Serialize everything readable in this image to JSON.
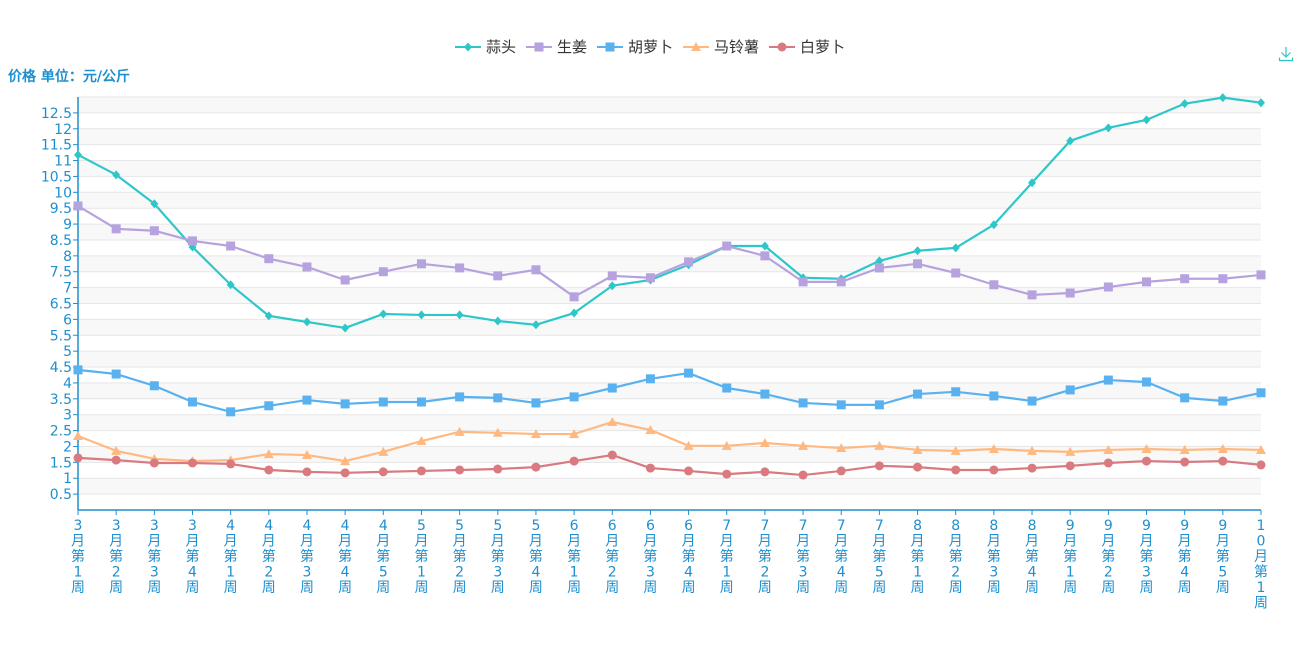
{
  "chart_data": {
    "type": "line",
    "ylabel": "价格 单位：元/公斤",
    "ylim": [
      0,
      13
    ],
    "ytick_step": 0.5,
    "yticks": [
      "0.5",
      "1",
      "1.5",
      "2",
      "2.5",
      "3",
      "3.5",
      "4",
      "4.5",
      "5",
      "5.5",
      "6",
      "6.5",
      "7",
      "7.5",
      "8",
      "8.5",
      "9",
      "9.5",
      "10",
      "10.5",
      "11",
      "11.5",
      "12",
      "12.5"
    ],
    "grid": true,
    "legend_position": "top-center",
    "categories": [
      "3月第1周",
      "3月第2周",
      "3月第3周",
      "3月第4周",
      "4月第1周",
      "4月第2周",
      "4月第3周",
      "4月第4周",
      "4月第5周",
      "5月第1周",
      "5月第2周",
      "5月第3周",
      "5月第4周",
      "6月第1周",
      "6月第2周",
      "6月第3周",
      "6月第4周",
      "7月第1周",
      "7月第2周",
      "7月第3周",
      "7月第4周",
      "7月第5周",
      "8月第1周",
      "8月第2周",
      "8月第3周",
      "8月第4周",
      "9月第1周",
      "9月第2周",
      "9月第3周",
      "9月第4周",
      "9月第5周",
      "10月第1周"
    ],
    "series": [
      {
        "name": "蒜头",
        "color": "#2ec7c9",
        "marker": "diamond",
        "values": [
          11.18,
          10.55,
          9.64,
          8.28,
          7.09,
          6.11,
          5.92,
          5.73,
          6.17,
          6.14,
          6.14,
          5.95,
          5.83,
          6.2,
          7.06,
          7.24,
          7.72,
          8.31,
          8.31,
          7.31,
          7.28,
          7.84,
          8.16,
          8.25,
          8.98,
          10.3,
          11.62,
          12.03,
          12.28,
          12.79,
          12.98,
          12.82
        ]
      },
      {
        "name": "生姜",
        "color": "#b6a2de",
        "marker": "square",
        "values": [
          9.57,
          8.85,
          8.79,
          8.47,
          8.31,
          7.91,
          7.65,
          7.24,
          7.5,
          7.75,
          7.62,
          7.37,
          7.56,
          6.71,
          7.37,
          7.31,
          7.81,
          8.31,
          8.0,
          7.18,
          7.18,
          7.62,
          7.75,
          7.46,
          7.09,
          6.77,
          6.83,
          7.02,
          7.18,
          7.28,
          7.28,
          7.4
        ]
      },
      {
        "name": "胡萝卜",
        "color": "#5ab1ef",
        "marker": "square",
        "values": [
          4.41,
          4.28,
          3.91,
          3.4,
          3.09,
          3.28,
          3.46,
          3.34,
          3.4,
          3.4,
          3.56,
          3.53,
          3.37,
          3.56,
          3.84,
          4.13,
          4.31,
          3.84,
          3.65,
          3.37,
          3.31,
          3.31,
          3.65,
          3.72,
          3.59,
          3.43,
          3.78,
          4.09,
          4.03,
          3.53,
          3.43,
          3.69
        ]
      },
      {
        "name": "马铃薯",
        "color": "#ffb980",
        "marker": "triangle",
        "values": [
          2.33,
          1.86,
          1.61,
          1.54,
          1.57,
          1.76,
          1.73,
          1.54,
          1.83,
          2.17,
          2.46,
          2.43,
          2.39,
          2.39,
          2.77,
          2.52,
          2.02,
          2.02,
          2.11,
          2.02,
          1.95,
          2.02,
          1.89,
          1.86,
          1.92,
          1.86,
          1.83,
          1.89,
          1.92,
          1.89,
          1.92,
          1.89
        ]
      },
      {
        "name": "白萝卜",
        "color": "#d87a80",
        "marker": "circle",
        "values": [
          1.64,
          1.57,
          1.48,
          1.48,
          1.45,
          1.26,
          1.2,
          1.17,
          1.2,
          1.23,
          1.26,
          1.29,
          1.35,
          1.54,
          1.73,
          1.32,
          1.23,
          1.13,
          1.2,
          1.1,
          1.23,
          1.39,
          1.35,
          1.26,
          1.26,
          1.32,
          1.39,
          1.48,
          1.54,
          1.51,
          1.54,
          1.42
        ]
      }
    ]
  },
  "toolbox": {
    "download_icon": "download-icon"
  },
  "colors": {
    "axis": "#1f8fcf",
    "grid": "#e6e6e6",
    "band": "#f8f8f8"
  }
}
